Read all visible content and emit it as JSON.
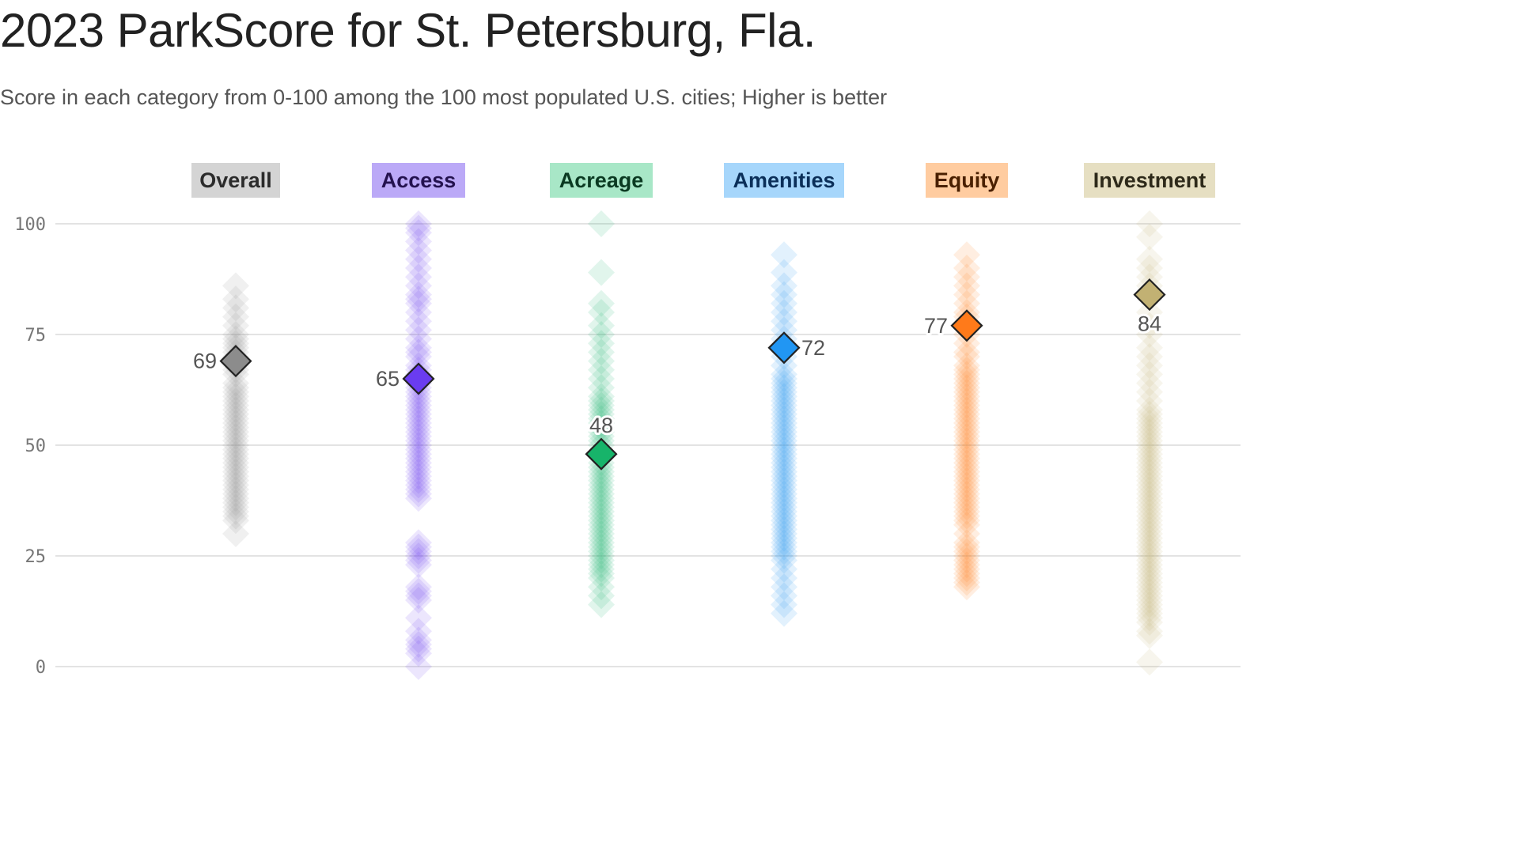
{
  "title": "2023 ParkScore for St. Petersburg, Fla.",
  "subtitle": "Score in each category from 0-100 among the 100 most populated U.S. cities; Higher is better",
  "chart_data": {
    "type": "scatter",
    "ylim": [
      0,
      100
    ],
    "yticks": [
      "0",
      "25",
      "50",
      "75",
      "100"
    ],
    "grid": true,
    "categories": [
      {
        "name": "Overall",
        "value": 69,
        "label": "69",
        "color": "#8c8c8c",
        "badge_bg": "#d4d4d4",
        "badge_fg": "#2b2b2b",
        "label_side": "left",
        "others": [
          86,
          83,
          81,
          79,
          77,
          75,
          74,
          73,
          72,
          71,
          70,
          68,
          67,
          66,
          64,
          63,
          62,
          61,
          60,
          59,
          58,
          57,
          56,
          55,
          54,
          53,
          52,
          51,
          50,
          49,
          48,
          47,
          46,
          45,
          44,
          43,
          42,
          41,
          40,
          39,
          38,
          37,
          36,
          35,
          34,
          33,
          30
        ]
      },
      {
        "name": "Access",
        "value": 65,
        "label": "65",
        "color": "#6a3cf0",
        "badge_bg": "#bba9f7",
        "badge_fg": "#24124f",
        "label_side": "left",
        "others": [
          100,
          99,
          98,
          96,
          94,
          92,
          90,
          88,
          86,
          84,
          83,
          82,
          80,
          78,
          76,
          74,
          72,
          71,
          70,
          68,
          67,
          66,
          64,
          63,
          62,
          61,
          60,
          59,
          58,
          57,
          56,
          55,
          54,
          53,
          52,
          51,
          50,
          49,
          48,
          47,
          46,
          45,
          44,
          43,
          42,
          41,
          40,
          39,
          38,
          28,
          27,
          26,
          25,
          24,
          23,
          18,
          17,
          16,
          15,
          11,
          8,
          6,
          5,
          4,
          3,
          0
        ]
      },
      {
        "name": "Acreage",
        "value": 48,
        "label": "48",
        "color": "#17b46a",
        "badge_bg": "#a8e7c7",
        "badge_fg": "#0b3a22",
        "label_side": "top",
        "others": [
          100,
          89,
          82,
          80,
          77,
          75,
          73,
          71,
          69,
          67,
          65,
          63,
          61,
          60,
          59,
          58,
          57,
          56,
          55,
          54,
          53,
          52,
          51,
          50,
          46,
          45,
          44,
          43,
          42,
          41,
          40,
          39,
          38,
          37,
          36,
          35,
          34,
          33,
          32,
          31,
          30,
          29,
          28,
          27,
          26,
          25,
          24,
          23,
          22,
          21,
          20,
          18,
          16,
          14
        ]
      },
      {
        "name": "Amenities",
        "value": 72,
        "label": "72",
        "color": "#2196f3",
        "badge_bg": "#a6d6fb",
        "badge_fg": "#0b2f59",
        "label_side": "right",
        "others": [
          93,
          89,
          86,
          84,
          82,
          80,
          78,
          76,
          74,
          70,
          68,
          66,
          65,
          64,
          63,
          62,
          61,
          60,
          59,
          58,
          57,
          56,
          55,
          54,
          53,
          52,
          51,
          50,
          49,
          48,
          47,
          46,
          45,
          44,
          43,
          42,
          41,
          40,
          39,
          38,
          37,
          36,
          35,
          34,
          33,
          32,
          31,
          30,
          29,
          28,
          27,
          26,
          25,
          24,
          22,
          20,
          18,
          16,
          14,
          12
        ]
      },
      {
        "name": "Equity",
        "value": 77,
        "label": "77",
        "color": "#ff7a1a",
        "badge_bg": "#ffcca0",
        "badge_fg": "#4a2000",
        "label_side": "left",
        "others": [
          93,
          90,
          88,
          86,
          84,
          82,
          80,
          79,
          75,
          73,
          71,
          70,
          68,
          67,
          66,
          65,
          64,
          63,
          62,
          61,
          60,
          59,
          58,
          57,
          56,
          55,
          54,
          53,
          52,
          51,
          50,
          49,
          48,
          47,
          46,
          45,
          44,
          43,
          42,
          41,
          40,
          39,
          38,
          37,
          36,
          35,
          34,
          33,
          32,
          30,
          28,
          27,
          26,
          25,
          24,
          23,
          22,
          21,
          20,
          19,
          18
        ]
      },
      {
        "name": "Investment",
        "value": 84,
        "label": "84",
        "color": "#c2b173",
        "badge_bg": "#e6dfc2",
        "badge_fg": "#2e2a1a",
        "label_side": "bottom",
        "others": [
          100,
          97,
          92,
          90,
          88,
          86,
          80,
          77,
          75,
          72,
          70,
          68,
          66,
          64,
          62,
          60,
          58,
          57,
          56,
          55,
          54,
          53,
          52,
          51,
          50,
          49,
          48,
          47,
          46,
          45,
          44,
          43,
          42,
          41,
          40,
          39,
          38,
          37,
          36,
          35,
          34,
          33,
          32,
          31,
          30,
          29,
          28,
          27,
          26,
          25,
          24,
          23,
          22,
          21,
          20,
          19,
          18,
          17,
          16,
          15,
          14,
          13,
          12,
          11,
          10,
          8,
          7,
          1
        ]
      }
    ]
  }
}
